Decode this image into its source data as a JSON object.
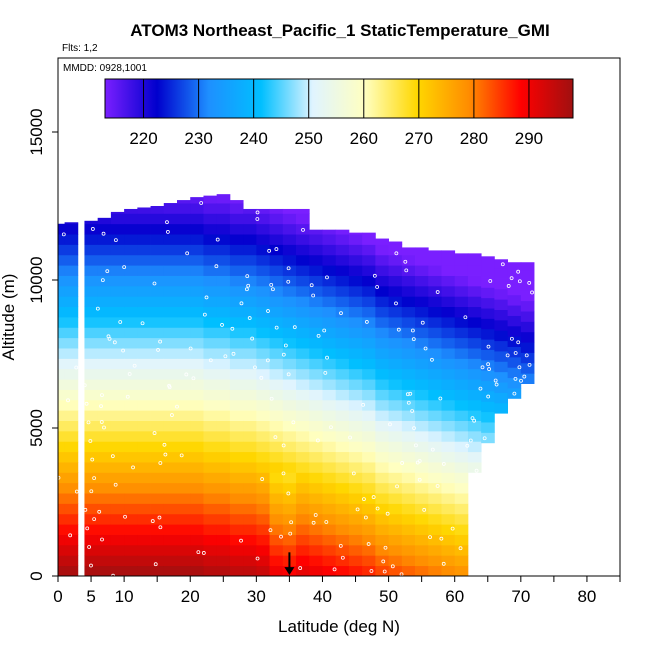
{
  "chart_data": {
    "type": "heatmap",
    "title": "ATOM3 Northeast_Pacific_1 StaticTemperature_GMI",
    "subtitle_flts": "Flts: 1,2",
    "subtitle_mmdd": "MMDD: 0928,1001",
    "xlabel": "Latitude (deg N)",
    "ylabel": "Altitude (m)",
    "xlim": [
      0,
      85
    ],
    "ylim": [
      0,
      17500
    ],
    "x_ticks": [
      0,
      5,
      10,
      20,
      30,
      40,
      50,
      60,
      70,
      80
    ],
    "y_ticks": [
      0,
      5000,
      10000,
      15000
    ],
    "colorbar": {
      "range": [
        213,
        298
      ],
      "ticks": [
        220,
        230,
        240,
        250,
        260,
        270,
        280,
        290
      ],
      "colors": [
        "#7a1fff",
        "#0000cd",
        "#1e90ff",
        "#00bfff",
        "#e0f4ff",
        "#ffffc0",
        "#ffd700",
        "#ff8c00",
        "#ff0000",
        "#a01010"
      ]
    },
    "profile_latitudes": [
      -2,
      0,
      2,
      5,
      7,
      9,
      11,
      13,
      15,
      17,
      19,
      21,
      23,
      25,
      27,
      29,
      31,
      33,
      35,
      37,
      39,
      41,
      43,
      45,
      47,
      49,
      51,
      53,
      55,
      57,
      59,
      61,
      63,
      65,
      67,
      69,
      71
    ],
    "profile_tops_m": [
      11800,
      11900,
      11950,
      12000,
      12100,
      12300,
      12400,
      12450,
      12500,
      12600,
      12700,
      12800,
      12850,
      12900,
      12700,
      12400,
      12400,
      12400,
      12400,
      12400,
      11700,
      11700,
      11700,
      11600,
      11600,
      11400,
      11300,
      11100,
      11100,
      11000,
      11000,
      10900,
      10900,
      10800,
      10700,
      10600,
      10600
    ],
    "profile_bottoms_m": [
      0,
      0,
      0,
      0,
      0,
      0,
      0,
      0,
      0,
      0,
      0,
      0,
      0,
      0,
      0,
      0,
      0,
      0,
      0,
      0,
      0,
      0,
      0,
      0,
      0,
      0,
      0,
      0,
      0,
      0,
      0,
      0,
      3500,
      4500,
      5500,
      6000,
      6500
    ],
    "lapse_rate_K_per_km": 6.5,
    "surface_temperature_K": [
      298,
      298,
      298,
      298,
      298,
      298,
      298,
      298,
      298,
      298,
      298,
      298,
      297,
      297,
      296,
      296,
      295,
      294,
      293,
      292,
      291,
      290,
      289,
      288,
      287,
      285,
      284,
      283,
      282,
      281,
      280,
      279,
      278,
      277,
      276,
      275,
      274
    ],
    "arrow_marker_latitude": 35
  }
}
